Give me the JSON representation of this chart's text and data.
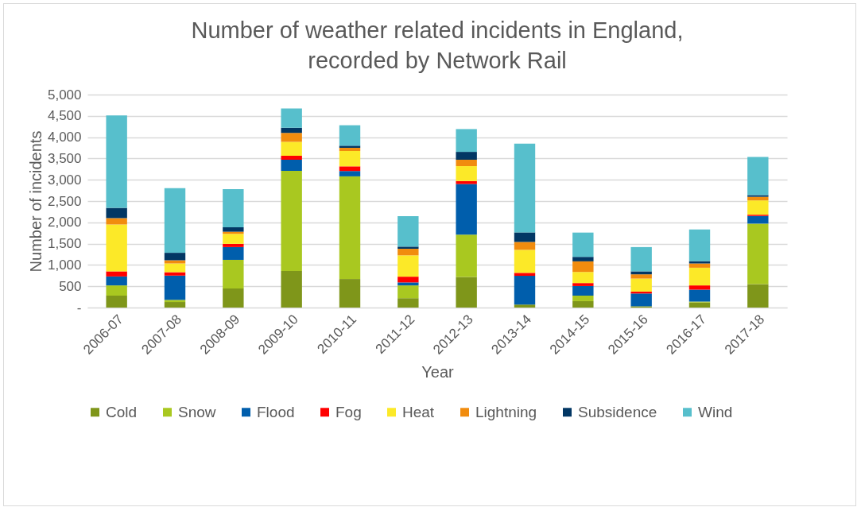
{
  "chart_data": {
    "type": "bar",
    "title": "Number of weather related incidents in England,\nrecorded by Network Rail",
    "xlabel": "Year",
    "ylabel": "Number of incidents",
    "categories": [
      "2006-07",
      "2007-08",
      "2008-09",
      "2009-10",
      "2010-11",
      "2011-12",
      "2012-13",
      "2013-14",
      "2014-15",
      "2015-16",
      "2016-17",
      "2017-18"
    ],
    "stacked": true,
    "series": [
      {
        "name": "Cold",
        "color": "#7f961a",
        "values": [
          280,
          130,
          450,
          860,
          670,
          220,
          720,
          70,
          150,
          30,
          120,
          550
        ]
      },
      {
        "name": "Snow",
        "color": "#a9c820",
        "values": [
          240,
          50,
          670,
          2350,
          2410,
          300,
          990,
          0,
          130,
          null,
          20,
          1420
        ]
      },
      {
        "name": "Flood",
        "color": "#005eac",
        "values": [
          210,
          570,
          300,
          260,
          125,
          70,
          1190,
          675,
          225,
          300,
          280,
          180
        ]
      },
      {
        "name": "Fog",
        "color": "#ff0000",
        "values": [
          120,
          80,
          75,
          95,
          110,
          135,
          70,
          70,
          70,
          45,
          100,
          30
        ]
      },
      {
        "name": "Heat",
        "color": "#fce928",
        "values": [
          1100,
          205,
          235,
          325,
          360,
          500,
          350,
          540,
          260,
          305,
          415,
          335
        ]
      },
      {
        "name": "Lightning",
        "color": "#f18c0e",
        "values": [
          150,
          75,
          50,
          210,
          75,
          155,
          150,
          185,
          250,
          100,
          100,
          85
        ]
      },
      {
        "name": "Subsidence",
        "color": "#023764",
        "values": [
          240,
          175,
          105,
          120,
          50,
          50,
          185,
          225,
          105,
          70,
          55,
          40
        ]
      },
      {
        "name": "Wind",
        "color": "#57bfcc",
        "values": [
          2170,
          1520,
          895,
          455,
          480,
          715,
          535,
          2085,
          570,
          570,
          745,
          895
        ]
      }
    ],
    "ylim": [
      0,
      5000
    ],
    "yticks": [
      {
        "value": 0,
        "label": "-"
      },
      500,
      {
        "value": 1000,
        "label": "1,000"
      },
      {
        "value": 1500,
        "label": "1,500"
      },
      {
        "value": 2000,
        "label": "2,000"
      },
      {
        "value": 2500,
        "label": "2,500"
      },
      {
        "value": 3000,
        "label": "3,000"
      },
      {
        "value": 3500,
        "label": "3,500"
      },
      {
        "value": 4000,
        "label": "4,000"
      },
      {
        "value": 4500,
        "label": "4,500"
      },
      {
        "value": 5000,
        "label": "5,000"
      }
    ],
    "grid": "y",
    "legend": "bottom"
  }
}
